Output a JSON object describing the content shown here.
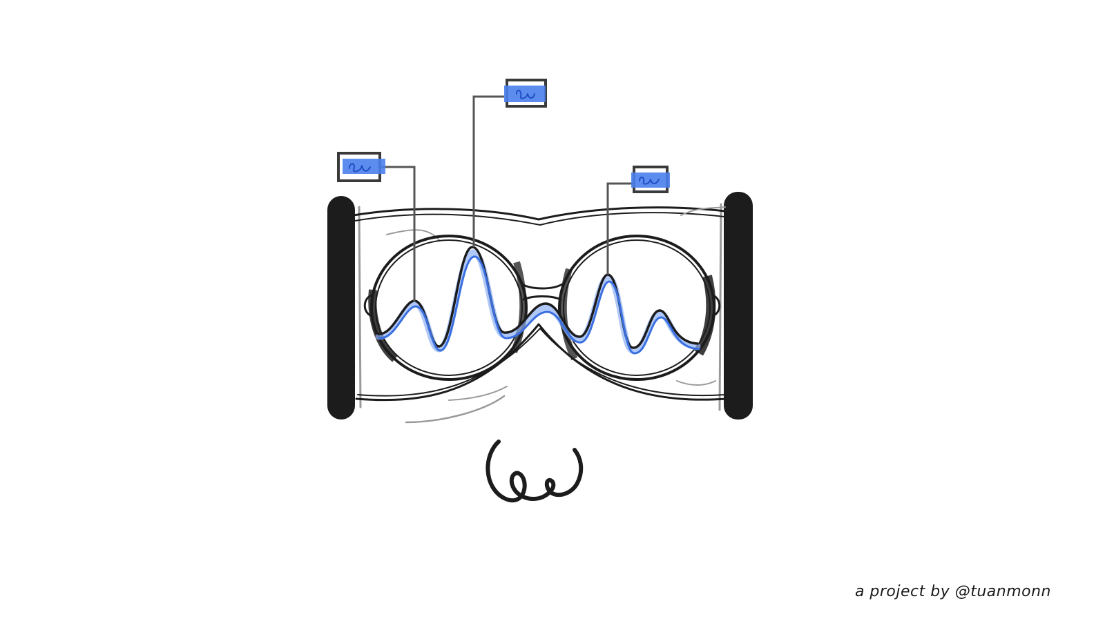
{
  "footer": {
    "credit": "a project by @tuanmonn"
  },
  "colors": {
    "ink": "#1c1c1c",
    "accent_blue": "#3a6fe0",
    "accent_blue_light": "#6f9bf2",
    "grey": "#9a9a9a",
    "background": "#ffffff"
  },
  "icons": {
    "main": "glasses-waveform-icon",
    "logo": "ww-scribble-logo",
    "callouts": [
      "scribble-label-icon",
      "scribble-label-icon",
      "scribble-label-icon"
    ]
  }
}
